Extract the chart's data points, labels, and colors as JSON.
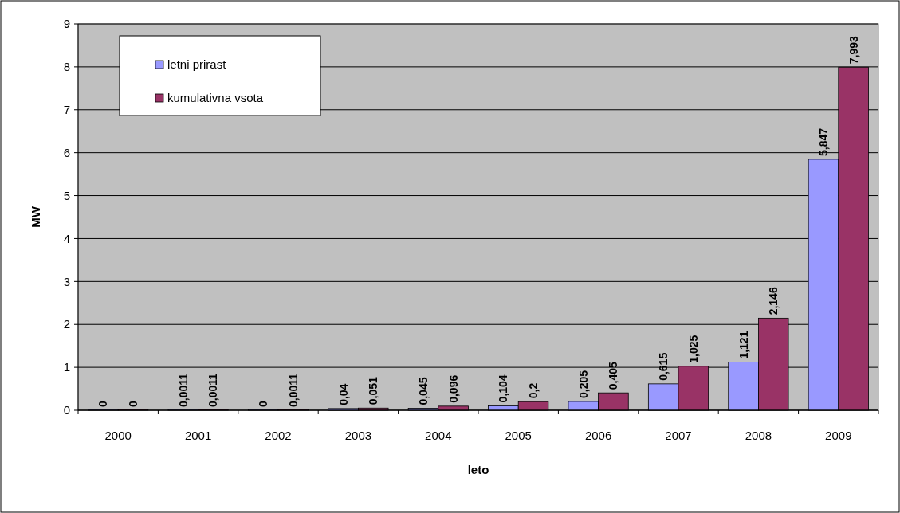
{
  "chart_data": {
    "type": "bar",
    "xlabel": "leto",
    "ylabel": "MW",
    "categories": [
      "2000",
      "2001",
      "2002",
      "2003",
      "2004",
      "2005",
      "2006",
      "2007",
      "2008",
      "2009"
    ],
    "series": [
      {
        "name": "letni prirast",
        "color": "#9999ff",
        "values": [
          0,
          0.0011,
          0,
          0.04,
          0.045,
          0.104,
          0.205,
          0.615,
          1.121,
          5.847
        ],
        "value_labels": [
          "0",
          "0,0011",
          "0",
          "0,04",
          "0,045",
          "0,104",
          "0,205",
          "0,615",
          "1,121",
          "5,847"
        ]
      },
      {
        "name": "kumulativna vsota",
        "color": "#993366",
        "values": [
          0,
          0.0011,
          0.0011,
          0.051,
          0.096,
          0.2,
          0.405,
          1.025,
          2.146,
          7.993
        ],
        "value_labels": [
          "0",
          "0,0011",
          "0,0011",
          "0,051",
          "0,096",
          "0,2",
          "0,405",
          "1,025",
          "2,146",
          "7,993"
        ]
      }
    ],
    "ylim": [
      0,
      9
    ],
    "yticks": [
      0,
      1,
      2,
      3,
      4,
      5,
      6,
      7,
      8,
      9
    ],
    "grid": "y",
    "legend": "top left"
  }
}
